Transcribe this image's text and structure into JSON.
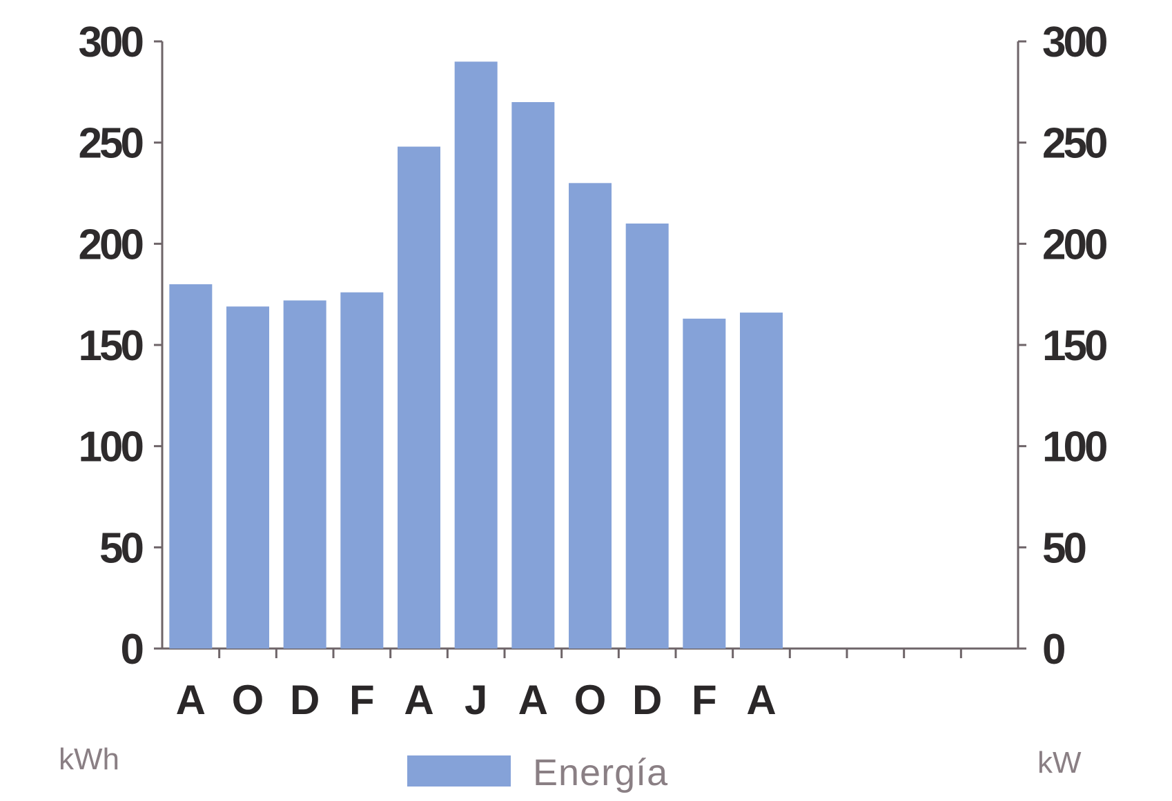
{
  "chart_data": {
    "type": "bar",
    "categories": [
      "A",
      "O",
      "D",
      "F",
      "A",
      "J",
      "A",
      "O",
      "D",
      "F",
      "A"
    ],
    "series": [
      {
        "name": "Energía",
        "values": [
          180,
          169,
          172,
          176,
          248,
          290,
          270,
          230,
          210,
          163,
          166
        ],
        "color": "#85a2d8"
      }
    ],
    "ylim": [
      0,
      300
    ],
    "yticks": [
      0,
      50,
      100,
      150,
      200,
      250,
      300
    ],
    "y2lim": [
      0,
      300
    ],
    "y2ticks": [
      0,
      50,
      100,
      150,
      200,
      250,
      300
    ],
    "ylabel": "kWh",
    "y2label": "kW",
    "x_slots": 15,
    "legend": {
      "position": "bottom",
      "entries": [
        "Energía"
      ]
    },
    "grid": false,
    "axis_color": "#6e6468"
  }
}
